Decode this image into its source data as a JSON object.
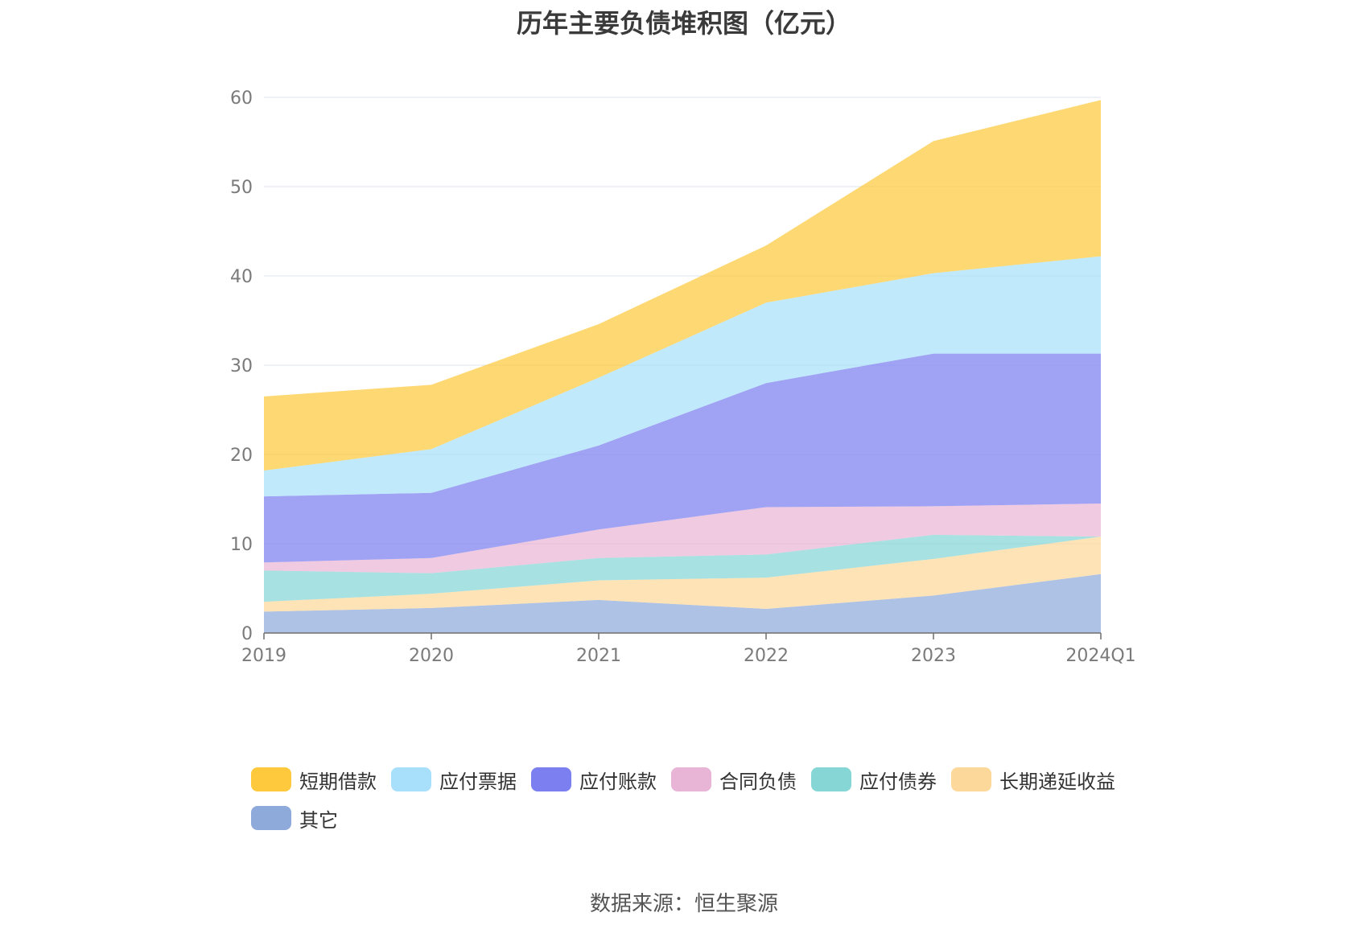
{
  "chart_data": {
    "type": "area",
    "stacked": true,
    "title": "历年主要负债堆积图（亿元）",
    "categories": [
      "2019",
      "2020",
      "2021",
      "2022",
      "2023",
      "2024Q1"
    ],
    "ylim": [
      0,
      60
    ],
    "yticks": [
      0,
      10,
      20,
      30,
      40,
      50,
      60
    ],
    "grid": true,
    "legend_position": "bottom",
    "series": [
      {
        "name": "其它",
        "color": "#8eaadb",
        "values": [
          2.4,
          2.8,
          3.7,
          2.7,
          4.2,
          6.6
        ]
      },
      {
        "name": "长期递延收益",
        "color": "#fdd89b",
        "values": [
          1.1,
          1.6,
          2.2,
          3.5,
          4.1,
          4.2
        ]
      },
      {
        "name": "应付债券",
        "color": "#87d6d6",
        "values": [
          3.5,
          2.3,
          2.5,
          2.6,
          2.7,
          0.0
        ]
      },
      {
        "name": "合同负债",
        "color": "#e9b5d6",
        "values": [
          0.9,
          1.7,
          3.2,
          5.3,
          3.2,
          3.7
        ]
      },
      {
        "name": "应付账款",
        "color": "#7b7ff0",
        "values": [
          7.4,
          7.3,
          9.4,
          13.9,
          17.1,
          16.8
        ]
      },
      {
        "name": "应付票据",
        "color": "#a8e0fb",
        "values": [
          2.9,
          4.9,
          7.6,
          9.0,
          9.0,
          10.9
        ]
      },
      {
        "name": "短期借款",
        "color": "#fec93c",
        "values": [
          8.3,
          7.2,
          6.0,
          6.4,
          14.8,
          17.5
        ]
      }
    ]
  },
  "legend": [
    {
      "name": "短期借款",
      "color": "#fec93c"
    },
    {
      "name": "应付票据",
      "color": "#a8e0fb"
    },
    {
      "name": "应付账款",
      "color": "#7b7ff0"
    },
    {
      "name": "合同负债",
      "color": "#e9b5d6"
    },
    {
      "name": "应付债券",
      "color": "#87d6d6"
    },
    {
      "name": "长期递延收益",
      "color": "#fdd89b"
    },
    {
      "name": "其它",
      "color": "#8eaadb"
    }
  ],
  "source_note": "数据来源：恒生聚源"
}
